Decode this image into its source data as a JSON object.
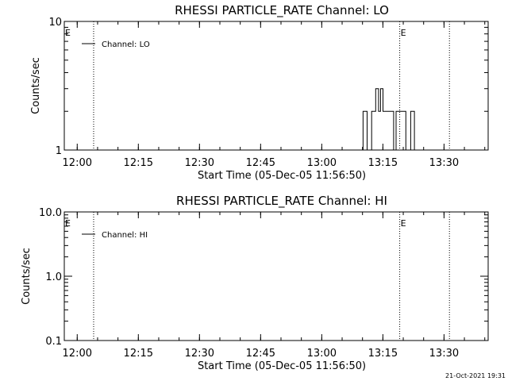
{
  "chart_data": [
    {
      "type": "line",
      "title": "RHESSI PARTICLE_RATE Channel: LO",
      "ylabel": "Counts/sec",
      "xlabel": "Start Time (05-Dec-05 11:56:50)",
      "x_tick_labels": [
        "12:00",
        "12:15",
        "12:30",
        "12:45",
        "13:00",
        "13:15",
        "13:30"
      ],
      "x_tick_minutes": [
        3.17,
        18.17,
        33.17,
        48.17,
        63.17,
        78.17,
        93.17
      ],
      "xlim_minutes": [
        0,
        104
      ],
      "y_scale": "log",
      "ylim": [
        1,
        10
      ],
      "y_tick_labels": [
        "1",
        "10"
      ],
      "y_tick_values": [
        1,
        10
      ],
      "legend": {
        "label": "Channel: LO",
        "position": "top-left"
      },
      "event_lines_minutes": [
        7.2,
        82.3,
        94.5
      ],
      "event_markers": [
        {
          "label": "E",
          "at_minute": 0
        },
        {
          "label": "E",
          "at_minute": 82.3
        }
      ],
      "series": [
        {
          "x": [
            73.3,
            73.3,
            74.3,
            74.3,
            75.4,
            75.4,
            76.4,
            76.4,
            77.1,
            77.1,
            77.6,
            77.6,
            78.2,
            78.2,
            78.9,
            78.9,
            80.8,
            80.8,
            81.4,
            81.4,
            82.4,
            82.4,
            83.8,
            83.8,
            85.0,
            85.0,
            85.9,
            85.9
          ],
          "y": [
            1,
            2,
            2,
            1,
            1,
            2,
            2,
            3,
            3,
            2,
            2,
            3,
            3,
            2,
            2,
            2,
            2,
            1,
            1,
            2,
            2,
            2,
            2,
            1,
            1,
            2,
            2,
            1
          ]
        }
      ]
    },
    {
      "type": "line",
      "title": "RHESSI PARTICLE_RATE Channel: HI",
      "ylabel": "Counts/sec",
      "xlabel": "Start Time (05-Dec-05 11:56:50)",
      "x_tick_labels": [
        "12:00",
        "12:15",
        "12:30",
        "12:45",
        "13:00",
        "13:15",
        "13:30"
      ],
      "x_tick_minutes": [
        3.17,
        18.17,
        33.17,
        48.17,
        63.17,
        78.17,
        93.17
      ],
      "xlim_minutes": [
        0,
        104
      ],
      "y_scale": "log",
      "ylim": [
        0.1,
        10
      ],
      "y_tick_labels": [
        "0.1",
        "1.0",
        "10.0"
      ],
      "y_tick_values": [
        0.1,
        1,
        10
      ],
      "legend": {
        "label": "Channel: HI",
        "position": "top-left"
      },
      "event_lines_minutes": [
        7.2,
        82.3,
        94.5
      ],
      "event_markers": [
        {
          "label": "E",
          "at_minute": 0
        },
        {
          "label": "E",
          "at_minute": 82.3
        }
      ],
      "series": [
        {
          "x": [],
          "y": []
        }
      ]
    }
  ],
  "footer": {
    "timestamp": "21-Oct-2021 19:31"
  }
}
